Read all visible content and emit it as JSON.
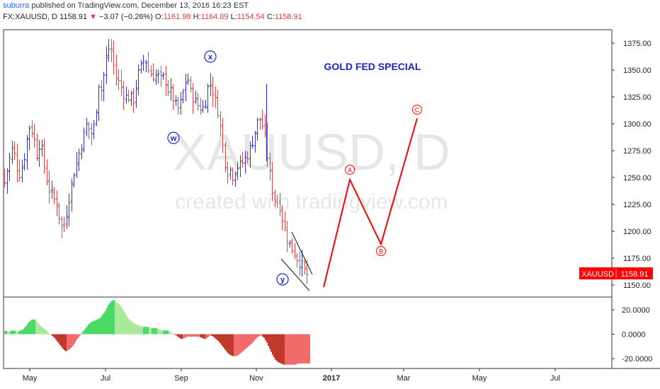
{
  "header": {
    "user": "suburra",
    "published": "published on TradingView.com, December 13, 2016 16:23 EST",
    "symbol": "FX:XAUUSD, D",
    "last": "1158.91",
    "change_arrow": "▼",
    "change": "−3.07 (−0.26%)",
    "o_label": "O:",
    "o_value": "1161.98",
    "h_label": "H:",
    "h_value": "1164.89",
    "l_label": "L:",
    "l_value": "1154.54",
    "c_label": "C:",
    "c_value": "1158.91"
  },
  "watermark": {
    "line1": "XAUUSD, D",
    "line2": "created with tradingview.com"
  },
  "annotations": {
    "title": "GOLD FED SPECIAL",
    "wave_x": "x",
    "wave_w": "w",
    "wave_y": "y",
    "wave_a": "A",
    "wave_b": "B",
    "wave_c": "C"
  },
  "price_badge": {
    "symbol": "XAUUSD",
    "value": "1158.91"
  },
  "colors": {
    "up": "#3333cc",
    "down": "#e04848",
    "projection": "#ff0000",
    "osc_up": "#4cd964",
    "osc_down": "#c0392b",
    "badge": "#ff0000",
    "title": "#1a22cc"
  },
  "chart_data": {
    "type": "ohlc",
    "price_axis": {
      "ylim": [
        1140,
        1385
      ],
      "ticks": [
        "1375.00",
        "1350.00",
        "1325.00",
        "1300.00",
        "1275.00",
        "1250.00",
        "1225.00",
        "1200.00",
        "1175.00",
        "1150.00"
      ],
      "tick_values": [
        1375,
        1350,
        1325,
        1300,
        1275,
        1250,
        1225,
        1200,
        1175,
        1150
      ]
    },
    "osc_axis": {
      "ylim": [
        -28,
        30
      ],
      "ticks": [
        "20.0000",
        "0.0000",
        "-20.0000"
      ],
      "tick_values": [
        20,
        0,
        -20
      ]
    },
    "x_axis": {
      "ticks": [
        "May",
        "Jul",
        "Sep",
        "Nov",
        "2017",
        "Mar",
        "May",
        "Jul"
      ]
    },
    "price_path": [
      [
        0,
        1255
      ],
      [
        6,
        1245
      ],
      [
        12,
        1265
      ],
      [
        18,
        1280
      ],
      [
        22,
        1262
      ],
      [
        28,
        1252
      ],
      [
        34,
        1270
      ],
      [
        38,
        1288
      ],
      [
        42,
        1300
      ],
      [
        48,
        1285
      ],
      [
        52,
        1270
      ],
      [
        56,
        1285
      ],
      [
        62,
        1260
      ],
      [
        68,
        1240
      ],
      [
        74,
        1232
      ],
      [
        80,
        1225
      ],
      [
        84,
        1210
      ],
      [
        88,
        1200
      ],
      [
        92,
        1212
      ],
      [
        98,
        1235
      ],
      [
        104,
        1255
      ],
      [
        110,
        1270
      ],
      [
        116,
        1285
      ],
      [
        122,
        1300
      ],
      [
        128,
        1290
      ],
      [
        134,
        1300
      ],
      [
        138,
        1340
      ],
      [
        142,
        1330
      ],
      [
        146,
        1345
      ],
      [
        150,
        1362
      ],
      [
        154,
        1372
      ],
      [
        158,
        1365
      ],
      [
        162,
        1345
      ],
      [
        166,
        1340
      ],
      [
        170,
        1335
      ],
      [
        176,
        1325
      ],
      [
        182,
        1325
      ],
      [
        188,
        1322
      ],
      [
        194,
        1345
      ],
      [
        198,
        1352
      ],
      [
        204,
        1362
      ],
      [
        210,
        1348
      ],
      [
        216,
        1345
      ],
      [
        222,
        1345
      ],
      [
        228,
        1340
      ],
      [
        232,
        1345
      ],
      [
        236,
        1332
      ],
      [
        240,
        1330
      ],
      [
        246,
        1320
      ],
      [
        250,
        1312
      ],
      [
        256,
        1322
      ],
      [
        260,
        1335
      ],
      [
        264,
        1345
      ],
      [
        268,
        1330
      ],
      [
        274,
        1322
      ],
      [
        278,
        1318
      ],
      [
        282,
        1315
      ],
      [
        288,
        1315
      ],
      [
        292,
        1332
      ],
      [
        296,
        1338
      ],
      [
        300,
        1330
      ],
      [
        304,
        1320
      ],
      [
        308,
        1310
      ],
      [
        312,
        1290
      ],
      [
        316,
        1270
      ],
      [
        320,
        1255
      ],
      [
        324,
        1258
      ],
      [
        328,
        1252
      ],
      [
        334,
        1260
      ],
      [
        340,
        1262
      ],
      [
        346,
        1268
      ],
      [
        350,
        1272
      ],
      [
        354,
        1280
      ],
      [
        358,
        1288
      ],
      [
        362,
        1300
      ],
      [
        366,
        1305
      ],
      [
        370,
        1298
      ],
      [
        374,
        1285
      ],
      [
        378,
        1265
      ],
      [
        382,
        1245
      ],
      [
        386,
        1232
      ],
      [
        390,
        1228
      ],
      [
        394,
        1225
      ],
      [
        398,
        1212
      ],
      [
        402,
        1200
      ],
      [
        406,
        1192
      ],
      [
        410,
        1185
      ],
      [
        414,
        1182
      ],
      [
        418,
        1176
      ],
      [
        422,
        1172
      ],
      [
        426,
        1168
      ],
      [
        430,
        1162
      ],
      [
        434,
        1159
      ]
    ],
    "oscillator": [
      [
        4,
        2
      ],
      [
        8,
        3
      ],
      [
        12,
        2
      ],
      [
        16,
        3
      ],
      [
        20,
        3
      ],
      [
        24,
        2
      ],
      [
        28,
        3
      ],
      [
        32,
        4
      ],
      [
        36,
        7
      ],
      [
        40,
        10
      ],
      [
        44,
        12
      ],
      [
        48,
        12
      ],
      [
        52,
        10
      ],
      [
        56,
        7
      ],
      [
        60,
        5
      ],
      [
        64,
        3
      ],
      [
        68,
        1
      ],
      [
        72,
        -1
      ],
      [
        76,
        -3
      ],
      [
        80,
        -6
      ],
      [
        84,
        -9
      ],
      [
        88,
        -12
      ],
      [
        92,
        -14
      ],
      [
        96,
        -13
      ],
      [
        100,
        -11
      ],
      [
        104,
        -8
      ],
      [
        108,
        -4
      ],
      [
        112,
        -1
      ],
      [
        116,
        2
      ],
      [
        120,
        5
      ],
      [
        124,
        8
      ],
      [
        128,
        10
      ],
      [
        132,
        11
      ],
      [
        136,
        12
      ],
      [
        140,
        13
      ],
      [
        144,
        16
      ],
      [
        148,
        19
      ],
      [
        152,
        24
      ],
      [
        156,
        27
      ],
      [
        160,
        28
      ],
      [
        164,
        26
      ],
      [
        168,
        24
      ],
      [
        172,
        21
      ],
      [
        176,
        17
      ],
      [
        180,
        13
      ],
      [
        184,
        11
      ],
      [
        188,
        9
      ],
      [
        192,
        8
      ],
      [
        196,
        7
      ],
      [
        200,
        6
      ],
      [
        204,
        6
      ],
      [
        208,
        6
      ],
      [
        212,
        5
      ],
      [
        216,
        5
      ],
      [
        220,
        5
      ],
      [
        224,
        4
      ],
      [
        228,
        3
      ],
      [
        232,
        3
      ],
      [
        236,
        3
      ],
      [
        240,
        2
      ],
      [
        244,
        0
      ],
      [
        248,
        -1
      ],
      [
        252,
        -3
      ],
      [
        256,
        -4
      ],
      [
        260,
        -3
      ],
      [
        264,
        -2
      ],
      [
        268,
        -2
      ],
      [
        272,
        -2
      ],
      [
        276,
        -2
      ],
      [
        280,
        -2
      ],
      [
        284,
        -3
      ],
      [
        288,
        -4
      ],
      [
        292,
        -3
      ],
      [
        296,
        -1
      ],
      [
        300,
        -2
      ],
      [
        304,
        -4
      ],
      [
        308,
        -6
      ],
      [
        312,
        -9
      ],
      [
        316,
        -12
      ],
      [
        320,
        -15
      ],
      [
        324,
        -17
      ],
      [
        328,
        -18
      ],
      [
        332,
        -18
      ],
      [
        336,
        -17
      ],
      [
        340,
        -15
      ],
      [
        344,
        -13
      ],
      [
        348,
        -11
      ],
      [
        352,
        -9
      ],
      [
        356,
        -7
      ],
      [
        360,
        -4
      ],
      [
        364,
        -2
      ],
      [
        368,
        -1
      ],
      [
        372,
        -3
      ],
      [
        376,
        -7
      ],
      [
        380,
        -12
      ],
      [
        384,
        -17
      ],
      [
        388,
        -21
      ],
      [
        392,
        -23
      ],
      [
        396,
        -24
      ],
      [
        400,
        -25
      ],
      [
        404,
        -25
      ],
      [
        408,
        -25
      ],
      [
        412,
        -25
      ],
      [
        416,
        -25
      ],
      [
        420,
        -24
      ],
      [
        424,
        -24
      ],
      [
        428,
        -24
      ],
      [
        432,
        -24
      ],
      [
        436,
        -24
      ]
    ],
    "projection": [
      {
        "label": "start",
        "price": 1148
      },
      {
        "label": "A",
        "price": 1248
      },
      {
        "label": "B",
        "price": 1188
      },
      {
        "label": "C",
        "price": 1305
      }
    ],
    "last_price": 1158.91
  }
}
